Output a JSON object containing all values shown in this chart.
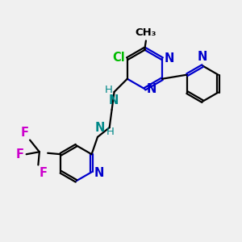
{
  "bg_color": "#f0f0f0",
  "bond_color": "#000000",
  "N_color": "#0000cc",
  "Cl_color": "#00bb00",
  "F_color": "#cc00cc",
  "NH_color": "#008888",
  "line_width": 1.6,
  "font_size": 10.5,
  "fig_w": 3.0,
  "fig_h": 3.0,
  "dpi": 100,
  "xlim": [
    0,
    10
  ],
  "ylim": [
    0,
    10
  ]
}
